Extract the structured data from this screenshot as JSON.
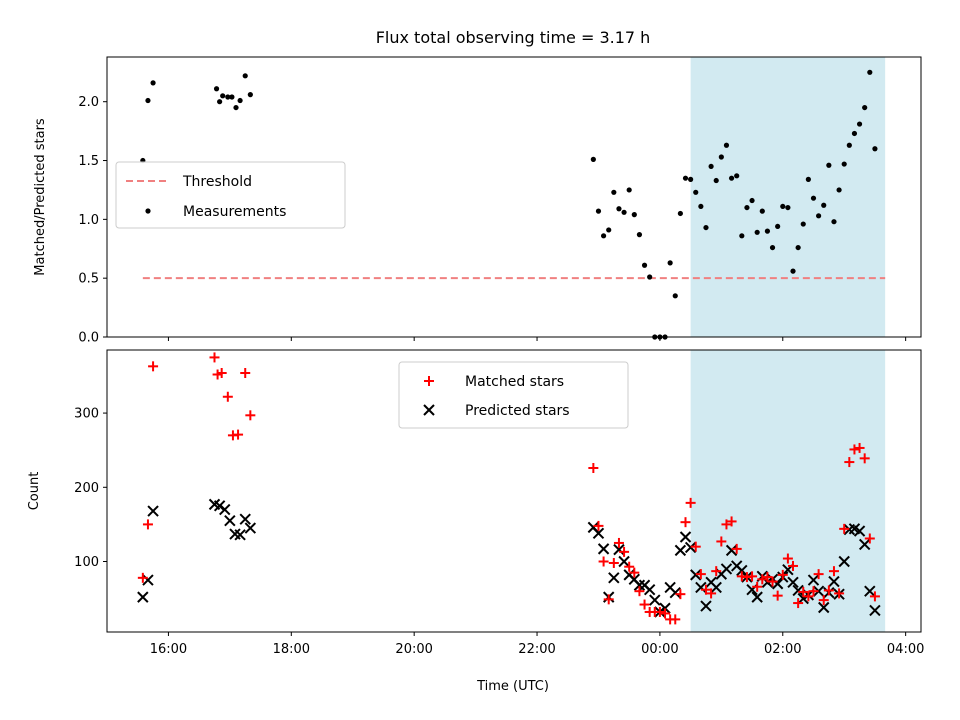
{
  "title": "Flux total observing time = 3.17 h",
  "colors": {
    "threshold": "#f08080",
    "measurements": "#000000",
    "matched": "#ff0000",
    "predicted": "#000000",
    "span": "#add8e6"
  },
  "chart_data": [
    {
      "type": "scatter",
      "ylabel": "Matched/Predicted stars",
      "xlabel": "",
      "xlim": [
        "15:00",
        "04:15"
      ],
      "ylim": [
        0,
        2.38
      ],
      "yticks": [
        "0.0",
        "0.5",
        "1.0",
        "1.5",
        "2.0"
      ],
      "legend_position": "center-left",
      "highlight_span": [
        "00:30",
        "03:40"
      ],
      "threshold": {
        "name": "Threshold",
        "value": 0.5,
        "x": [
          "15:35",
          "03:40"
        ]
      },
      "series": [
        {
          "name": "Measurements",
          "points": [
            [
              "15:35",
              1.5
            ],
            [
              "15:40",
              2.01
            ],
            [
              "15:45",
              2.16
            ],
            [
              "16:47",
              2.11
            ],
            [
              "16:50",
              2.0
            ],
            [
              "16:53",
              2.05
            ],
            [
              "16:58",
              2.04
            ],
            [
              "17:02",
              2.04
            ],
            [
              "17:06",
              1.95
            ],
            [
              "17:10",
              2.01
            ],
            [
              "17:15",
              2.22
            ],
            [
              "17:20",
              2.06
            ],
            [
              "22:55",
              1.51
            ],
            [
              "23:00",
              1.07
            ],
            [
              "23:05",
              0.86
            ],
            [
              "23:10",
              0.91
            ],
            [
              "23:15",
              1.23
            ],
            [
              "23:20",
              1.09
            ],
            [
              "23:25",
              1.06
            ],
            [
              "23:30",
              1.25
            ],
            [
              "23:35",
              1.04
            ],
            [
              "23:40",
              0.87
            ],
            [
              "23:45",
              0.61
            ],
            [
              "23:50",
              0.51
            ],
            [
              "23:55",
              0.0
            ],
            [
              "00:00",
              0.0
            ],
            [
              "00:05",
              0.0
            ],
            [
              "00:10",
              0.63
            ],
            [
              "00:15",
              0.35
            ],
            [
              "00:20",
              1.05
            ],
            [
              "00:25",
              1.35
            ],
            [
              "00:30",
              1.34
            ],
            [
              "00:35",
              1.23
            ],
            [
              "00:40",
              1.11
            ],
            [
              "00:45",
              0.93
            ],
            [
              "00:50",
              1.45
            ],
            [
              "00:55",
              1.33
            ],
            [
              "01:00",
              1.53
            ],
            [
              "01:05",
              1.63
            ],
            [
              "01:10",
              1.35
            ],
            [
              "01:15",
              1.37
            ],
            [
              "01:20",
              0.86
            ],
            [
              "01:25",
              1.1
            ],
            [
              "01:30",
              1.16
            ],
            [
              "01:35",
              0.89
            ],
            [
              "01:40",
              1.07
            ],
            [
              "01:45",
              0.9
            ],
            [
              "01:50",
              0.76
            ],
            [
              "01:55",
              0.94
            ],
            [
              "02:00",
              1.11
            ],
            [
              "02:05",
              1.1
            ],
            [
              "02:10",
              0.56
            ],
            [
              "02:15",
              0.76
            ],
            [
              "02:20",
              0.96
            ],
            [
              "02:25",
              1.34
            ],
            [
              "02:30",
              1.18
            ],
            [
              "02:35",
              1.03
            ],
            [
              "02:40",
              1.12
            ],
            [
              "02:45",
              1.46
            ],
            [
              "02:50",
              0.98
            ],
            [
              "02:55",
              1.25
            ],
            [
              "03:00",
              1.47
            ],
            [
              "03:05",
              1.63
            ],
            [
              "03:10",
              1.73
            ],
            [
              "03:15",
              1.81
            ],
            [
              "03:20",
              1.95
            ],
            [
              "03:25",
              2.25
            ],
            [
              "03:30",
              1.6
            ]
          ]
        }
      ]
    },
    {
      "type": "scatter",
      "ylabel": "Count",
      "xlabel": "Time (UTC)",
      "xlim": [
        "15:00",
        "04:15"
      ],
      "ylim": [
        5,
        385
      ],
      "xticks": [
        "16:00",
        "18:00",
        "20:00",
        "22:00",
        "00:00",
        "02:00",
        "04:00"
      ],
      "yticks": [
        "100",
        "200",
        "300"
      ],
      "legend_position": "top-center",
      "highlight_span": [
        "00:30",
        "03:40"
      ],
      "series": [
        {
          "name": "Matched stars",
          "marker": "+",
          "points": [
            [
              "15:35",
              78
            ],
            [
              "15:40",
              150
            ],
            [
              "15:45",
              363
            ],
            [
              "16:45",
              375
            ],
            [
              "16:48",
              352
            ],
            [
              "16:52",
              354
            ],
            [
              "16:58",
              322
            ],
            [
              "17:03",
              270
            ],
            [
              "17:08",
              271
            ],
            [
              "17:15",
              354
            ],
            [
              "17:20",
              297
            ],
            [
              "22:55",
              226
            ],
            [
              "23:00",
              148
            ],
            [
              "23:05",
              100
            ],
            [
              "23:10",
              49
            ],
            [
              "23:15",
              98
            ],
            [
              "23:20",
              125
            ],
            [
              "23:25",
              113
            ],
            [
              "23:30",
              93
            ],
            [
              "23:35",
              85
            ],
            [
              "23:40",
              60
            ],
            [
              "23:45",
              42
            ],
            [
              "23:50",
              32
            ],
            [
              "23:55",
              32
            ],
            [
              "00:00",
              32
            ],
            [
              "00:05",
              30
            ],
            [
              "00:10",
              22
            ],
            [
              "00:15",
              22
            ],
            [
              "00:20",
              56
            ],
            [
              "00:25",
              153
            ],
            [
              "00:30",
              179
            ],
            [
              "00:35",
              120
            ],
            [
              "00:40",
              83
            ],
            [
              "00:45",
              62
            ],
            [
              "00:50",
              57
            ],
            [
              "00:55",
              87
            ],
            [
              "01:00",
              127
            ],
            [
              "01:05",
              150
            ],
            [
              "01:10",
              154
            ],
            [
              "01:15",
              117
            ],
            [
              "01:20",
              80
            ],
            [
              "01:25",
              79
            ],
            [
              "01:30",
              80
            ],
            [
              "01:35",
              66
            ],
            [
              "01:40",
              76
            ],
            [
              "01:45",
              79
            ],
            [
              "01:50",
              73
            ],
            [
              "01:55",
              54
            ],
            [
              "02:00",
              82
            ],
            [
              "02:05",
              104
            ],
            [
              "02:10",
              94
            ],
            [
              "02:15",
              44
            ],
            [
              "02:20",
              59
            ],
            [
              "02:25",
              53
            ],
            [
              "02:30",
              60
            ],
            [
              "02:35",
              83
            ],
            [
              "02:40",
              48
            ],
            [
              "02:45",
              61
            ],
            [
              "02:50",
              87
            ],
            [
              "02:55",
              57
            ],
            [
              "03:00",
              144
            ],
            [
              "03:05",
              234
            ],
            [
              "03:10",
              251
            ],
            [
              "03:15",
              253
            ],
            [
              "03:20",
              239
            ],
            [
              "03:25",
              131
            ],
            [
              "03:30",
              53
            ]
          ]
        },
        {
          "name": "Predicted stars",
          "marker": "x",
          "points": [
            [
              "15:35",
              52
            ],
            [
              "15:40",
              75
            ],
            [
              "15:45",
              168
            ],
            [
              "16:45",
              177
            ],
            [
              "16:50",
              175
            ],
            [
              "16:55",
              170
            ],
            [
              "17:00",
              155
            ],
            [
              "17:05",
              137
            ],
            [
              "17:10",
              136
            ],
            [
              "17:15",
              157
            ],
            [
              "17:20",
              145
            ],
            [
              "22:55",
              146
            ],
            [
              "23:00",
              138
            ],
            [
              "23:05",
              117
            ],
            [
              "23:10",
              52
            ],
            [
              "23:15",
              78
            ],
            [
              "23:20",
              116
            ],
            [
              "23:25",
              100
            ],
            [
              "23:30",
              82
            ],
            [
              "23:35",
              76
            ],
            [
              "23:40",
              68
            ],
            [
              "23:45",
              68
            ],
            [
              "23:50",
              62
            ],
            [
              "23:55",
              48
            ],
            [
              "00:00",
              32
            ],
            [
              "00:05",
              37
            ],
            [
              "00:10",
              65
            ],
            [
              "00:15",
              58
            ],
            [
              "00:20",
              115
            ],
            [
              "00:25",
              133
            ],
            [
              "00:30",
              119
            ],
            [
              "00:35",
              82
            ],
            [
              "00:40",
              65
            ],
            [
              "00:45",
              40
            ],
            [
              "00:50",
              72
            ],
            [
              "00:55",
              65
            ],
            [
              "01:00",
              83
            ],
            [
              "01:05",
              90
            ],
            [
              "01:10",
              115
            ],
            [
              "01:15",
              94
            ],
            [
              "01:20",
              88
            ],
            [
              "01:25",
              79
            ],
            [
              "01:30",
              62
            ],
            [
              "01:35",
              52
            ],
            [
              "01:40",
              80
            ],
            [
              "01:45",
              72
            ],
            [
              "01:50",
              76
            ],
            [
              "01:55",
              70
            ],
            [
              "02:00",
              79
            ],
            [
              "02:05",
              89
            ],
            [
              "02:10",
              72
            ],
            [
              "02:15",
              61
            ],
            [
              "02:20",
              50
            ],
            [
              "02:25",
              55
            ],
            [
              "02:30",
              75
            ],
            [
              "02:35",
              60
            ],
            [
              "02:40",
              38
            ],
            [
              "02:45",
              58
            ],
            [
              "02:50",
              73
            ],
            [
              "02:55",
              56
            ],
            [
              "03:00",
              100
            ],
            [
              "03:05",
              143
            ],
            [
              "03:10",
              144
            ],
            [
              "03:15",
              141
            ],
            [
              "03:20",
              123
            ],
            [
              "03:25",
              60
            ],
            [
              "03:30",
              34
            ]
          ]
        }
      ]
    }
  ]
}
